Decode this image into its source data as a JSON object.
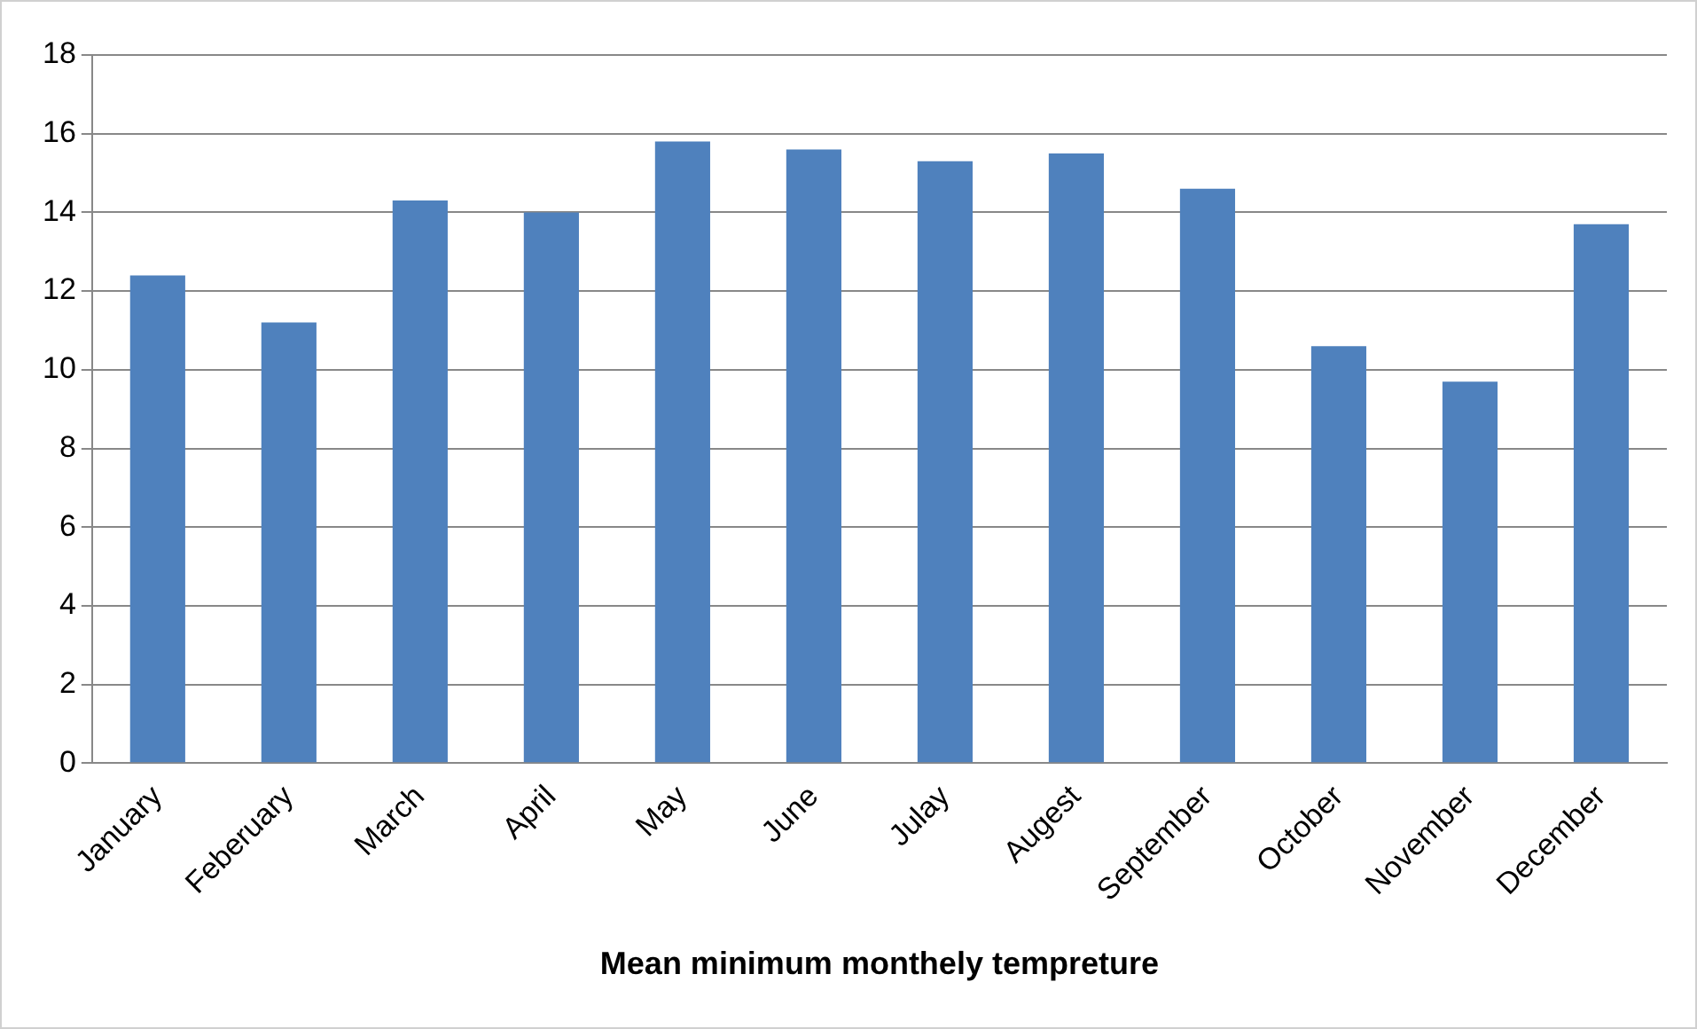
{
  "chart_data": {
    "type": "bar",
    "xlabel": "Mean minimum monthely tempreture",
    "categories": [
      "January",
      "Feberuary",
      "March",
      "April",
      "May",
      "June",
      "Julay",
      "Augest",
      "September",
      "October",
      "November",
      "December"
    ],
    "values": [
      12.4,
      11.2,
      14.3,
      14.0,
      15.8,
      15.6,
      15.3,
      15.5,
      14.6,
      10.6,
      9.7,
      13.7
    ],
    "color": "#4f81bd",
    "ylim": [
      0,
      18
    ],
    "yticks": [
      0,
      2,
      4,
      6,
      8,
      10,
      12,
      14,
      16,
      18
    ],
    "grid": "y",
    "legend": false
  }
}
